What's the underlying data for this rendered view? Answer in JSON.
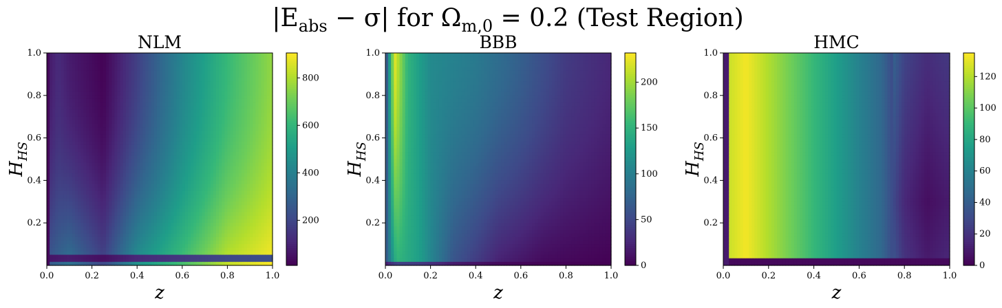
{
  "figure": {
    "title_main": "|E",
    "title_sub": "abs",
    "title_mid": " − σ| for Ω",
    "title_sub2": "m,0",
    "title_tail": " = 0.2 (Test Region)"
  },
  "chart_data": [
    {
      "type": "heatmap",
      "title": "NLM",
      "xlabel": "z",
      "ylabel": "H",
      "ylabel_sub": "HS",
      "xlim": [
        0.0,
        1.0
      ],
      "ylim": [
        0.0,
        1.0
      ],
      "x_ticks": [
        "0.0",
        "0.2",
        "0.4",
        "0.6",
        "0.8",
        "1.0"
      ],
      "y_ticks": [
        "0.2",
        "0.4",
        "0.6",
        "0.8",
        "1.0"
      ],
      "colorbar": {
        "range": [
          10,
          905
        ],
        "ticks": [
          200,
          400,
          600,
          800
        ],
        "colormap": "viridis"
      },
      "pattern": {
        "description_values": "value grows with z; dark minimum band near z≈0.25; brightest (~900) at low H and z→1; thin dark band near H≈0.03",
        "z_profile_top": [
          [
            0.0,
            60
          ],
          [
            0.05,
            120
          ],
          [
            0.1,
            80
          ],
          [
            0.25,
            15
          ],
          [
            0.4,
            180
          ],
          [
            0.6,
            420
          ],
          [
            0.8,
            610
          ],
          [
            1.0,
            760
          ]
        ],
        "z_profile_bottom": [
          [
            0.0,
            250
          ],
          [
            0.1,
            350
          ],
          [
            0.25,
            200
          ],
          [
            0.4,
            470
          ],
          [
            0.6,
            640
          ],
          [
            0.8,
            830
          ],
          [
            1.0,
            905
          ]
        ]
      }
    },
    {
      "type": "heatmap",
      "title": "BBB",
      "xlabel": "z",
      "ylabel": "H",
      "ylabel_sub": "HS",
      "xlim": [
        0.0,
        1.0
      ],
      "ylim": [
        0.0,
        1.0
      ],
      "x_ticks": [
        "0.0",
        "0.2",
        "0.4",
        "0.6",
        "0.8",
        "1.0"
      ],
      "y_ticks": [
        "0.2",
        "0.4",
        "0.6",
        "0.8",
        "1.0"
      ],
      "colorbar": {
        "range": [
          0,
          232
        ],
        "ticks": [
          0,
          50,
          100,
          150,
          200
        ],
        "colormap": "viridis"
      },
      "pattern": {
        "description_values": "sharp peak (~225) near z≈0.04 at high H; decreasing toward large z; low values at bottom-right",
        "z_profile_top": [
          [
            0.0,
            40
          ],
          [
            0.04,
            225
          ],
          [
            0.1,
            150
          ],
          [
            0.2,
            110
          ],
          [
            0.4,
            95
          ],
          [
            0.6,
            70
          ],
          [
            0.8,
            40
          ],
          [
            1.0,
            25
          ]
        ],
        "z_profile_bottom": [
          [
            0.0,
            60
          ],
          [
            0.05,
            150
          ],
          [
            0.15,
            130
          ],
          [
            0.3,
            60
          ],
          [
            0.5,
            20
          ],
          [
            0.7,
            5
          ],
          [
            1.0,
            0
          ]
        ]
      }
    },
    {
      "type": "heatmap",
      "title": "HMC",
      "xlabel": "z",
      "ylabel": "H",
      "ylabel_sub": "HS",
      "xlim": [
        0.0,
        1.0
      ],
      "ylim": [
        0.0,
        1.0
      ],
      "x_ticks": [
        "0.0",
        "0.2",
        "0.4",
        "0.6",
        "0.8",
        "1.0"
      ],
      "y_ticks": [
        "0.2",
        "0.4",
        "0.6",
        "0.8",
        "1.0"
      ],
      "colorbar": {
        "range": [
          0,
          135
        ],
        "ticks": [
          0,
          20,
          40,
          60,
          80,
          100,
          120
        ],
        "colormap": "viridis"
      },
      "pattern": {
        "description_values": "maximum (~133) near z≈0.05–0.1; decreasing with z; minimum near z≈0.9 forming a U-shaped dark valley; dark strip at H<0.03",
        "z_profile": [
          [
            0.0,
            20
          ],
          [
            0.03,
            125
          ],
          [
            0.1,
            133
          ],
          [
            0.3,
            105
          ],
          [
            0.5,
            75
          ],
          [
            0.7,
            45
          ],
          [
            0.8,
            15
          ],
          [
            0.9,
            5
          ],
          [
            1.0,
            10
          ]
        ]
      }
    }
  ]
}
